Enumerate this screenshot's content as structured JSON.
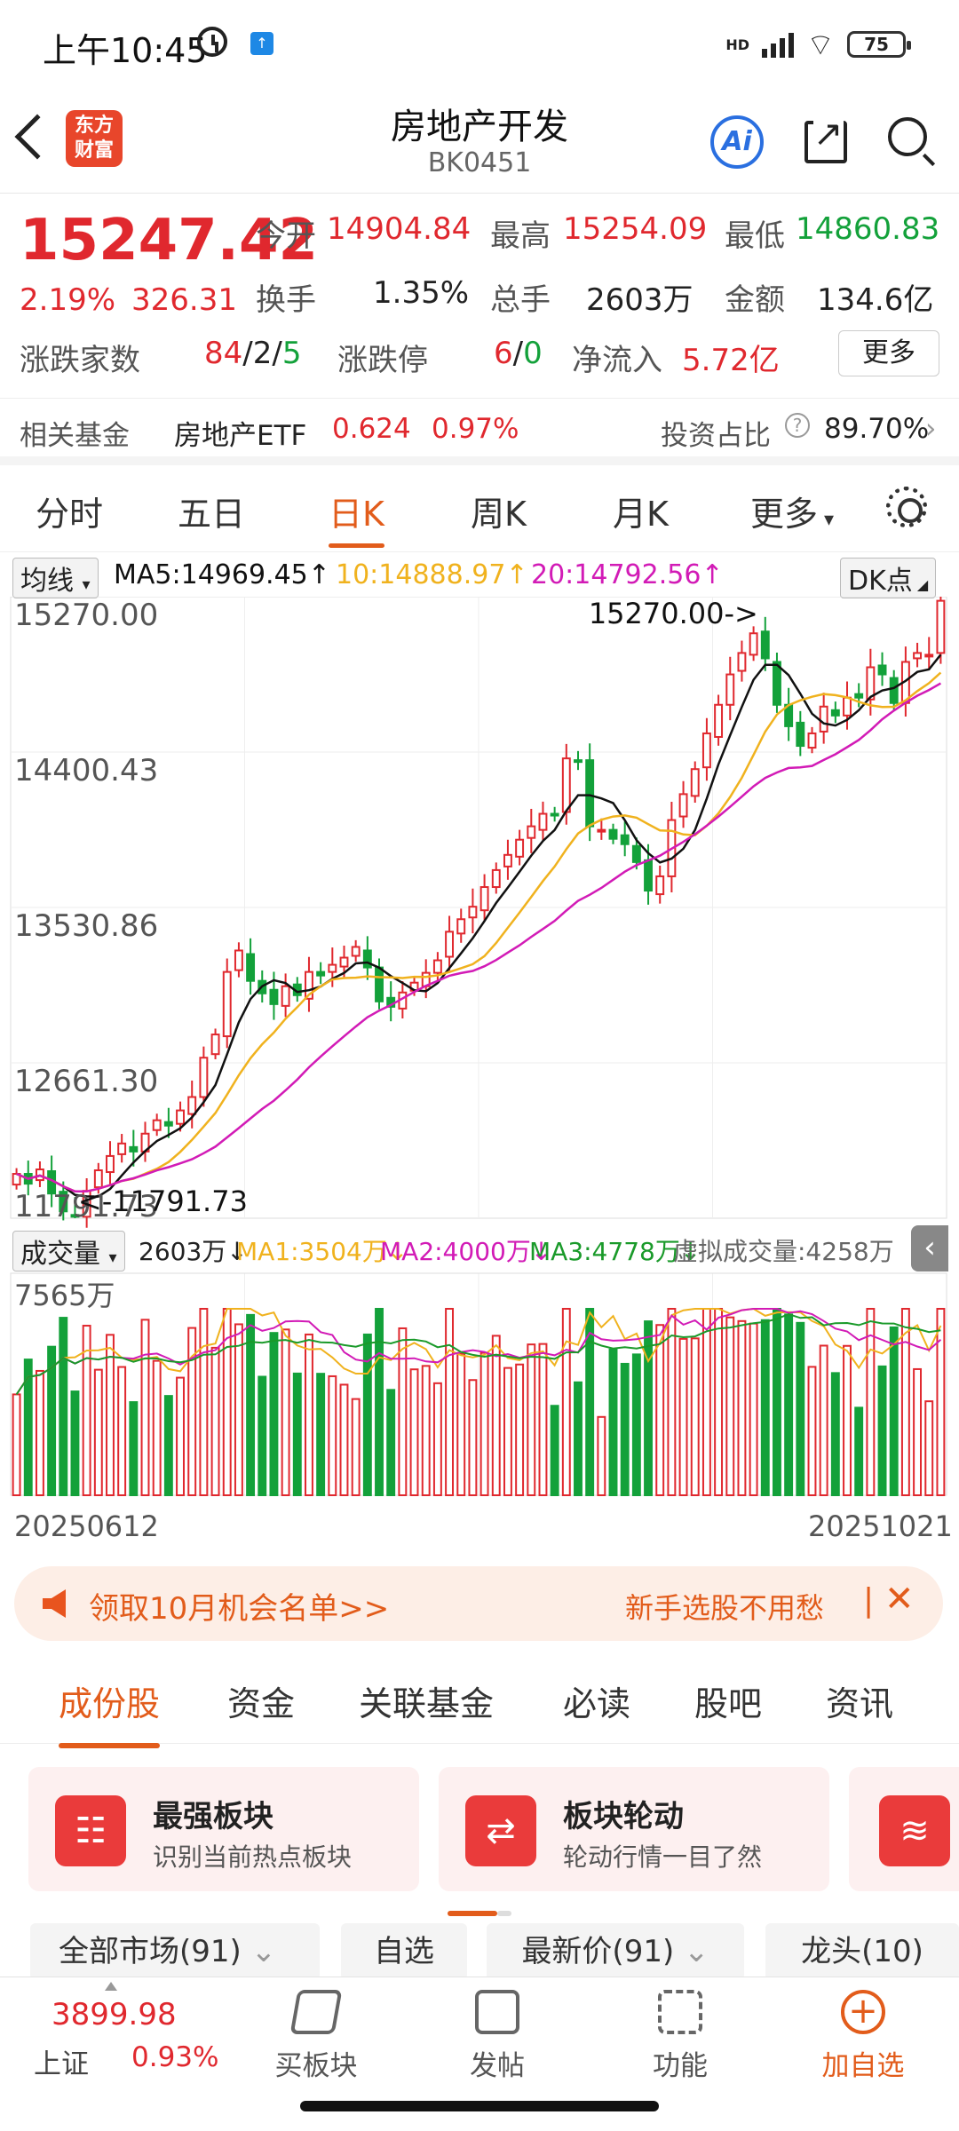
{
  "status_bar": {
    "time": "上午10:45",
    "network": "HD",
    "battery": "75"
  },
  "header": {
    "logo": "东方\n财富",
    "title": "房地产开发",
    "code": "BK0451",
    "ai_label": "Ai"
  },
  "quote": {
    "price": "15247.42",
    "change_pct": "2.19%",
    "change": "326.31",
    "open_label": "今开",
    "open": "14904.84",
    "high_label": "最高",
    "high": "15254.09",
    "low_label": "最低",
    "low": "14860.83",
    "turnover_label": "换手",
    "turnover": "1.35%",
    "volume_label": "总手",
    "volume": "2603万",
    "amount_label": "金额",
    "amount": "134.6亿",
    "breadth_label": "涨跌家数",
    "breadth_up": "84",
    "breadth_flat": "2",
    "breadth_down": "5",
    "limit_label": "涨跌停",
    "limit_up": "6",
    "limit_down": "0",
    "netflow_label": "净流入",
    "netflow": "5.72亿",
    "more": "更多"
  },
  "fund": {
    "label": "相关基金",
    "name": "房地产ETF",
    "price": "0.624",
    "pct": "0.97%",
    "ratio_label": "投资占比",
    "ratio": "89.70%"
  },
  "tabs": [
    "分时",
    "五日",
    "日K",
    "周K",
    "月K",
    "更多"
  ],
  "ma_bar": {
    "selector": "均线",
    "ma5": "MA5:14969.45",
    "ma10": "10:14888.97",
    "ma20": "20:14792.56",
    "dk": "DK点"
  },
  "vol_bar": {
    "selector": "成交量",
    "vol": "2603万",
    "ma1": "MA1:3504万",
    "ma2": "MA2:4000万",
    "ma3": "MA3:4778万",
    "virtual": "虚拟成交量:4258万"
  },
  "colors": {
    "up": "#e0282e",
    "down": "#13a13a",
    "ma5": "#111111",
    "ma10": "#f0b21e",
    "ma20": "#d21bb6",
    "ma3vol": "#1a9a2a",
    "accent": "#e25c1b"
  },
  "chart_data": {
    "type": "candlestick",
    "y_ticks": [
      "15270.00",
      "14400.43",
      "13530.86",
      "12661.30",
      "11791.73"
    ],
    "ylim": [
      11791.73,
      15270.0
    ],
    "max_label": "15270.00->",
    "min_label": "<-11791.73",
    "vol_tick": "7565万",
    "start_date": "20250612",
    "end_date": "20251021",
    "close": [
      12040,
      11985,
      12065,
      11930,
      11830,
      11800,
      11945,
      12060,
      12140,
      12210,
      12165,
      12265,
      12340,
      12310,
      12395,
      12470,
      12690,
      12820,
      13170,
      13290,
      13120,
      13050,
      12990,
      13090,
      13040,
      13170,
      13150,
      13210,
      13250,
      13310,
      13195,
      13005,
      12975,
      13055,
      13110,
      13165,
      13235,
      13395,
      13465,
      13535,
      13645,
      13740,
      13825,
      13910,
      13985,
      14055,
      14045,
      14365,
      14345,
      13985,
      13965,
      13915,
      13885,
      13785,
      13625,
      13705,
      14020,
      14165,
      14305,
      14505,
      14665,
      14835,
      14955,
      15065,
      14925,
      14665,
      14545,
      14435,
      14505,
      14655,
      14605,
      14705,
      14705,
      14875,
      14835,
      14675,
      14905,
      14955,
      14945,
      15247
    ]
  },
  "banner": {
    "text": "领取10月机会名单>>",
    "hint": "新手选股不用愁"
  },
  "subtabs": [
    "成份股",
    "资金",
    "关联基金",
    "必读",
    "股吧",
    "资讯"
  ],
  "cards": [
    {
      "title": "最强板块",
      "sub": "识别当前热点板块"
    },
    {
      "title": "板块轮动",
      "sub": "轮动行情一目了然"
    }
  ],
  "filters": [
    "全部市场(91)",
    "自选",
    "最新价(91)",
    "龙头(10)"
  ],
  "bottom_nav": {
    "index_price": "3899.98",
    "index_name": "上证",
    "index_pct": "0.93%",
    "items": [
      "买板块",
      "发帖",
      "功能",
      "加自选"
    ]
  }
}
